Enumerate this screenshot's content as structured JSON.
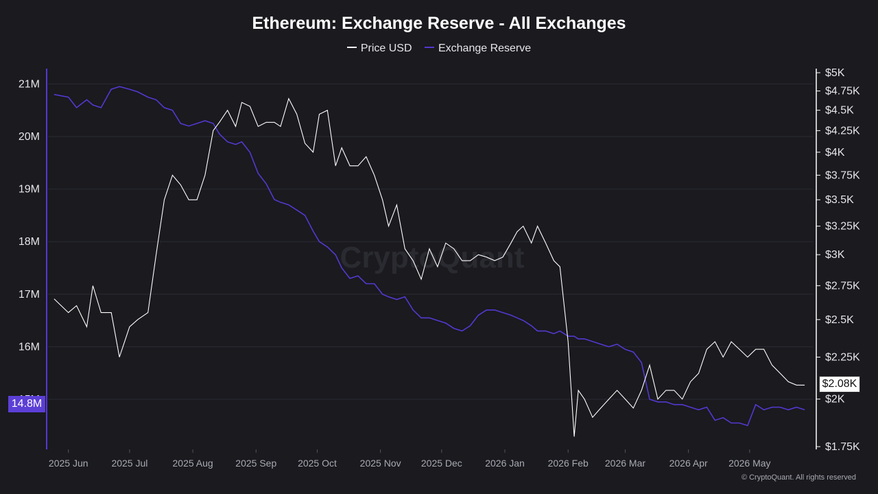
{
  "chart_data": {
    "type": "line",
    "title": "Ethereum: Exchange Reserve - All Exchanges",
    "legend": {
      "placement": "top-center",
      "entries": [
        "Price USD",
        "Exchange Reserve"
      ]
    },
    "colors": {
      "price": "#ffffff",
      "reserve": "#5538d0",
      "background": "#1a1a1f",
      "badge_reserve": "#5c3fd6"
    },
    "y_left": {
      "range": [
        14.1,
        21.3
      ],
      "ticks": [
        "21M",
        "20M",
        "19M",
        "18M",
        "17M",
        "16M",
        "15M"
      ],
      "tick_values": [
        21,
        20,
        19,
        18,
        17,
        16,
        15
      ],
      "unit": "M"
    },
    "y_right": {
      "range": [
        1.75,
        5.0
      ],
      "ticks": [
        "$5K",
        "$4.75K",
        "$4.5K",
        "$4.25K",
        "$4K",
        "$3.75K",
        "$3.5K",
        "$3.25K",
        "$3K",
        "$2.75K",
        "$2.5K",
        "$2.25K",
        "$2K",
        "$1.75K"
      ],
      "tick_values": [
        5,
        4.75,
        4.5,
        4.25,
        4,
        3.75,
        3.5,
        3.25,
        3,
        2.75,
        2.5,
        2.25,
        2,
        1.75
      ],
      "scale": "log"
    },
    "x_ticks": [
      "2025 Jun",
      "2025 Jul",
      "2025 Aug",
      "2025 Sep",
      "2025 Oct",
      "2025 Nov",
      "2025 Dec",
      "2026 Jan",
      "2026 Feb",
      "2026 Mar",
      "2026 Apr",
      "2026 May"
    ],
    "grid": true,
    "current_reserve_label": "14.8M",
    "current_price_label": "$2.08K",
    "series": [
      {
        "name": "Price USD",
        "axis": "right",
        "unit": "K USD",
        "x": [
          "2025-05-25",
          "2025-06-01",
          "2025-06-05",
          "2025-06-10",
          "2025-06-13",
          "2025-06-17",
          "2025-06-22",
          "2025-06-26",
          "2025-07-01",
          "2025-07-05",
          "2025-07-10",
          "2025-07-14",
          "2025-07-18",
          "2025-07-22",
          "2025-07-26",
          "2025-07-30",
          "2025-08-03",
          "2025-08-07",
          "2025-08-11",
          "2025-08-14",
          "2025-08-18",
          "2025-08-22",
          "2025-08-25",
          "2025-08-29",
          "2025-09-02",
          "2025-09-06",
          "2025-09-10",
          "2025-09-13",
          "2025-09-17",
          "2025-09-21",
          "2025-09-25",
          "2025-09-29",
          "2025-10-02",
          "2025-10-06",
          "2025-10-10",
          "2025-10-13",
          "2025-10-17",
          "2025-10-21",
          "2025-10-25",
          "2025-10-29",
          "2025-11-02",
          "2025-11-05",
          "2025-11-09",
          "2025-11-13",
          "2025-11-17",
          "2025-11-21",
          "2025-11-25",
          "2025-11-29",
          "2025-12-03",
          "2025-12-07",
          "2025-12-11",
          "2025-12-15",
          "2025-12-19",
          "2025-12-23",
          "2025-12-27",
          "2025-12-31",
          "2026-01-04",
          "2026-01-07",
          "2026-01-10",
          "2026-01-14",
          "2026-01-17",
          "2026-01-21",
          "2026-01-25",
          "2026-01-28",
          "2026-02-01",
          "2026-02-04",
          "2026-02-06",
          "2026-02-09",
          "2026-02-13",
          "2026-02-17",
          "2026-02-21",
          "2026-02-25",
          "2026-03-01",
          "2026-03-05",
          "2026-03-09",
          "2026-03-13",
          "2026-03-17",
          "2026-03-21",
          "2026-03-25",
          "2026-03-29",
          "2026-04-02",
          "2026-04-06",
          "2026-04-10",
          "2026-04-14",
          "2026-04-18",
          "2026-04-22",
          "2026-04-26",
          "2026-04-30",
          "2026-05-04",
          "2026-05-08",
          "2026-05-12",
          "2026-05-16",
          "2026-05-20",
          "2026-05-24",
          "2026-05-28"
        ],
        "values": [
          2.65,
          2.55,
          2.6,
          2.45,
          2.75,
          2.55,
          2.55,
          2.25,
          2.45,
          2.5,
          2.55,
          3.0,
          3.5,
          3.75,
          3.65,
          3.5,
          3.5,
          3.75,
          4.25,
          4.35,
          4.5,
          4.3,
          4.6,
          4.55,
          4.3,
          4.35,
          4.35,
          4.3,
          4.65,
          4.45,
          4.1,
          4.0,
          4.45,
          4.5,
          3.85,
          4.05,
          3.85,
          3.85,
          3.95,
          3.75,
          3.5,
          3.25,
          3.45,
          3.05,
          2.95,
          2.8,
          3.05,
          2.9,
          3.1,
          3.05,
          2.95,
          2.95,
          3.0,
          2.98,
          2.95,
          2.98,
          3.1,
          3.2,
          3.25,
          3.1,
          3.25,
          3.1,
          2.95,
          2.9,
          2.35,
          1.8,
          2.05,
          2.0,
          1.9,
          1.95,
          2.0,
          2.05,
          2.0,
          1.95,
          2.05,
          2.2,
          2.0,
          2.05,
          2.05,
          2.0,
          2.1,
          2.15,
          2.3,
          2.35,
          2.25,
          2.35,
          2.3,
          2.25,
          2.3,
          2.3,
          2.2,
          2.15,
          2.1,
          2.08,
          2.08
        ]
      },
      {
        "name": "Exchange Reserve",
        "axis": "left",
        "unit": "M ETH",
        "x": [
          "2025-05-25",
          "2025-06-01",
          "2025-06-05",
          "2025-06-10",
          "2025-06-13",
          "2025-06-17",
          "2025-06-22",
          "2025-06-26",
          "2025-07-01",
          "2025-07-05",
          "2025-07-10",
          "2025-07-14",
          "2025-07-18",
          "2025-07-22",
          "2025-07-26",
          "2025-07-30",
          "2025-08-03",
          "2025-08-07",
          "2025-08-11",
          "2025-08-14",
          "2025-08-18",
          "2025-08-22",
          "2025-08-25",
          "2025-08-29",
          "2025-09-02",
          "2025-09-06",
          "2025-09-10",
          "2025-09-13",
          "2025-09-17",
          "2025-09-21",
          "2025-09-25",
          "2025-09-29",
          "2025-10-02",
          "2025-10-06",
          "2025-10-10",
          "2025-10-13",
          "2025-10-17",
          "2025-10-21",
          "2025-10-25",
          "2025-10-29",
          "2025-11-02",
          "2025-11-05",
          "2025-11-09",
          "2025-11-13",
          "2025-11-17",
          "2025-11-21",
          "2025-11-25",
          "2025-11-29",
          "2025-12-03",
          "2025-12-07",
          "2025-12-11",
          "2025-12-15",
          "2025-12-19",
          "2025-12-23",
          "2025-12-27",
          "2025-12-31",
          "2026-01-04",
          "2026-01-07",
          "2026-01-10",
          "2026-01-14",
          "2026-01-17",
          "2026-01-21",
          "2026-01-25",
          "2026-01-28",
          "2026-02-01",
          "2026-02-04",
          "2026-02-06",
          "2026-02-09",
          "2026-02-13",
          "2026-02-17",
          "2026-02-21",
          "2026-02-25",
          "2026-03-01",
          "2026-03-05",
          "2026-03-09",
          "2026-03-13",
          "2026-03-17",
          "2026-03-21",
          "2026-03-25",
          "2026-03-29",
          "2026-04-02",
          "2026-04-06",
          "2026-04-10",
          "2026-04-14",
          "2026-04-18",
          "2026-04-22",
          "2026-04-26",
          "2026-04-30",
          "2026-05-04",
          "2026-05-08",
          "2026-05-12",
          "2026-05-16",
          "2026-05-20",
          "2026-05-24",
          "2026-05-28"
        ],
        "values": [
          20.8,
          20.75,
          20.55,
          20.7,
          20.6,
          20.55,
          20.9,
          20.95,
          20.9,
          20.85,
          20.75,
          20.7,
          20.55,
          20.5,
          20.25,
          20.2,
          20.25,
          20.3,
          20.25,
          20.05,
          19.9,
          19.85,
          19.9,
          19.7,
          19.3,
          19.1,
          18.8,
          18.75,
          18.7,
          18.6,
          18.5,
          18.2,
          18.0,
          17.9,
          17.75,
          17.5,
          17.3,
          17.35,
          17.2,
          17.2,
          17.0,
          16.95,
          16.9,
          16.95,
          16.7,
          16.55,
          16.55,
          16.5,
          16.45,
          16.35,
          16.3,
          16.4,
          16.6,
          16.7,
          16.7,
          16.65,
          16.6,
          16.55,
          16.5,
          16.4,
          16.3,
          16.3,
          16.25,
          16.3,
          16.2,
          16.2,
          16.15,
          16.15,
          16.1,
          16.05,
          16.0,
          16.05,
          15.95,
          15.9,
          15.7,
          15.0,
          14.95,
          14.95,
          14.9,
          14.9,
          14.85,
          14.8,
          14.85,
          14.6,
          14.65,
          14.55,
          14.55,
          14.5,
          14.9,
          14.8,
          14.85,
          14.85,
          14.8,
          14.85,
          14.8
        ]
      }
    ]
  },
  "watermark": "CryptoQuant",
  "copyright": "© CryptoQuant. All rights reserved"
}
